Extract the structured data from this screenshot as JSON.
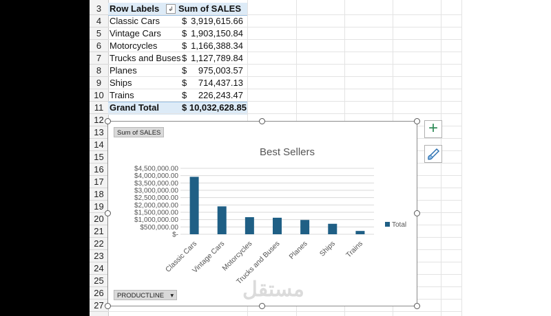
{
  "row_numbers": [
    "3",
    "4",
    "5",
    "6",
    "7",
    "8",
    "9",
    "10",
    "11",
    "12",
    "13",
    "14",
    "15",
    "16",
    "17",
    "18",
    "19",
    "20",
    "21",
    "22",
    "23",
    "24",
    "25",
    "26",
    "27"
  ],
  "pivot": {
    "header_label": "Row Labels",
    "header_value": "Sum of SALES",
    "rows": [
      {
        "label": "Classic Cars",
        "currency": "$",
        "value": "3,919,615.66"
      },
      {
        "label": "Vintage Cars",
        "currency": "$",
        "value": "1,903,150.84"
      },
      {
        "label": "Motorcycles",
        "currency": "$",
        "value": "1,166,388.34"
      },
      {
        "label": "Trucks and Buses",
        "currency": "$",
        "value": "1,127,789.84"
      },
      {
        "label": "Planes",
        "currency": "$",
        "value": "975,003.57"
      },
      {
        "label": "Ships",
        "currency": "$",
        "value": "714,437.13"
      },
      {
        "label": "Trains",
        "currency": "$",
        "value": "226,243.47"
      }
    ],
    "total_label": "Grand Total",
    "total_value": "$ 10,032,628.85"
  },
  "chart": {
    "value_field_button": "Sum of SALES",
    "axis_field_button": "PRODUCTLINE",
    "axis_field_arrow": "▾",
    "plus_icon": "+",
    "watermark": "مستقل"
  },
  "chart_data": {
    "type": "bar",
    "title": "Best Sellers",
    "categories": [
      "Classic Cars",
      "Vintage Cars",
      "Motorcycles",
      "Trucks and Buses",
      "Planes",
      "Ships",
      "Trains"
    ],
    "series": [
      {
        "name": "Total",
        "values": [
          3919615.66,
          1903150.84,
          1166388.34,
          1127789.84,
          975003.57,
          714437.13,
          226243.47
        ]
      }
    ],
    "yticks": [
      "$-",
      "$500,000.00",
      "$1,000,000.00",
      "$1,500,000.00",
      "$2,000,000.00",
      "$2,500,000.00",
      "$3,000,000.00",
      "$3,500,000.00",
      "$4,000,000.00",
      "$4,500,000.00"
    ],
    "ylim": [
      0,
      4500000
    ],
    "grid": true,
    "legend_position": "right",
    "bar_color": "#1f5f85"
  }
}
